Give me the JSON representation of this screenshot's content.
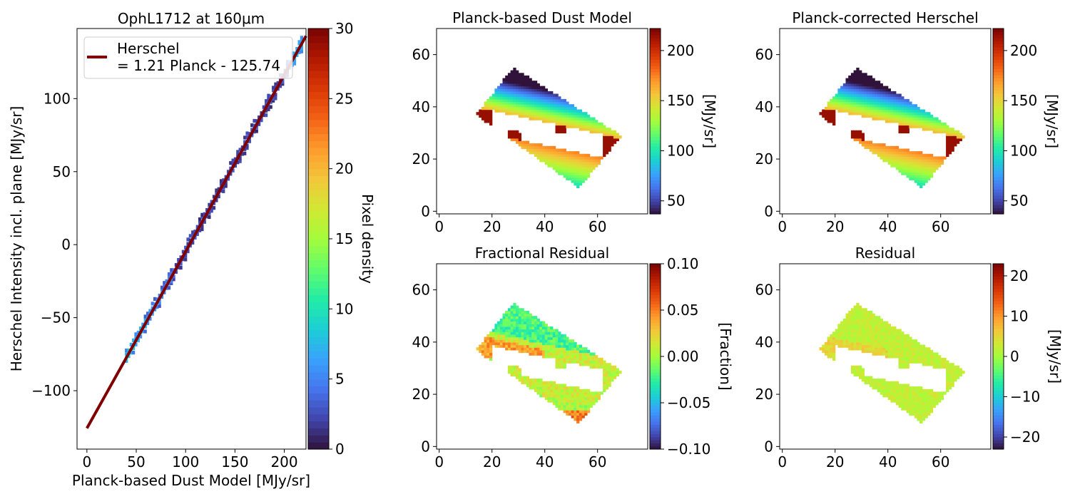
{
  "colormap": [
    "#30123b",
    "#4145ab",
    "#4675ed",
    "#39a2fc",
    "#1bcfd4",
    "#24eca6",
    "#61fc6c",
    "#a4fc3b",
    "#d1e834",
    "#f3c63a",
    "#fe9b2d",
    "#f36315",
    "#d93806",
    "#b11901",
    "#7a0402"
  ],
  "chart_data": [
    {
      "type": "heatmap",
      "panel": "scatter-density",
      "title": "OphL1712 at 160μm",
      "xlabel": "Planck-based Dust Model [MJy/sr]",
      "ylabel": "Herschel Intensity incl. plane [MJy/sr]",
      "xlim": [
        -10,
        222
      ],
      "ylim": [
        -140,
        148
      ],
      "xticks": [
        "0",
        "50",
        "100",
        "150",
        "200"
      ],
      "yticks": [
        "−100",
        "−50",
        "0",
        "50",
        "100"
      ],
      "xtick_values": [
        0,
        50,
        100,
        150,
        200
      ],
      "ytick_values": [
        -100,
        -50,
        0,
        50,
        100
      ],
      "fit": {
        "slope": 1.21,
        "intercept": -125.74,
        "x_range": [
          0,
          222
        ],
        "color": "#800000"
      },
      "legend": {
        "label": "Herschel\n= 1.21 Planck - 125.74",
        "line1": "Herschel",
        "line2": "= 1.21 Planck - 125.74",
        "position": "upper-left"
      },
      "data_x_range": [
        40,
        220
      ],
      "colorbar": {
        "label": "Pixel density",
        "min": 0,
        "max": 30,
        "ticks": [
          "0",
          "5",
          "10",
          "15",
          "20",
          "25",
          "30"
        ],
        "tick_values": [
          0,
          5,
          10,
          15,
          20,
          25,
          30
        ]
      }
    },
    {
      "type": "heatmap",
      "panel": "map",
      "title": "Planck-based Dust Model",
      "xticks": [
        "0",
        "20",
        "40",
        "60"
      ],
      "yticks": [
        "0",
        "20",
        "40",
        "60"
      ],
      "xlim": [
        -1,
        79
      ],
      "ylim": [
        -1,
        70
      ],
      "field": "model",
      "colorbar": {
        "label": "[MJy/sr]",
        "min": 37,
        "max": 222,
        "ticks": [
          "50",
          "100",
          "150",
          "200"
        ],
        "tick_values": [
          50,
          100,
          150,
          200
        ]
      }
    },
    {
      "type": "heatmap",
      "panel": "map",
      "title": "Planck-corrected Herschel",
      "xticks": [
        "0",
        "20",
        "40",
        "60"
      ],
      "yticks": [
        "0",
        "20",
        "40",
        "60"
      ],
      "xlim": [
        -1,
        79
      ],
      "ylim": [
        -1,
        70
      ],
      "field": "herschel",
      "colorbar": {
        "label": "[MJy/sr]",
        "min": 37,
        "max": 222,
        "ticks": [
          "50",
          "100",
          "150",
          "200"
        ],
        "tick_values": [
          50,
          100,
          150,
          200
        ]
      }
    },
    {
      "type": "heatmap",
      "panel": "map",
      "title": "Fractional Residual",
      "xticks": [
        "0",
        "20",
        "40",
        "60"
      ],
      "yticks": [
        "0",
        "20",
        "40",
        "60"
      ],
      "xlim": [
        -1,
        79
      ],
      "ylim": [
        -1,
        70
      ],
      "field": "fraction",
      "colorbar": {
        "label": "[Fraction]",
        "min": -0.1,
        "max": 0.1,
        "ticks": [
          "0.10",
          "0.05",
          "0.00",
          "−0.05",
          "−0.10"
        ],
        "tick_values": [
          0.1,
          0.05,
          0,
          -0.05,
          -0.1
        ]
      }
    },
    {
      "type": "heatmap",
      "panel": "map",
      "title": "Residual",
      "xticks": [
        "0",
        "20",
        "40",
        "60"
      ],
      "yticks": [
        "0",
        "20",
        "40",
        "60"
      ],
      "xlim": [
        -1,
        79
      ],
      "ylim": [
        -1,
        70
      ],
      "field": "residual",
      "colorbar": {
        "label": "[MJy/sr]",
        "min": -23,
        "max": 23,
        "ticks": [
          "20",
          "10",
          "0",
          "−10",
          "−20"
        ],
        "tick_values": [
          20,
          10,
          0,
          -10,
          -20
        ]
      }
    }
  ]
}
